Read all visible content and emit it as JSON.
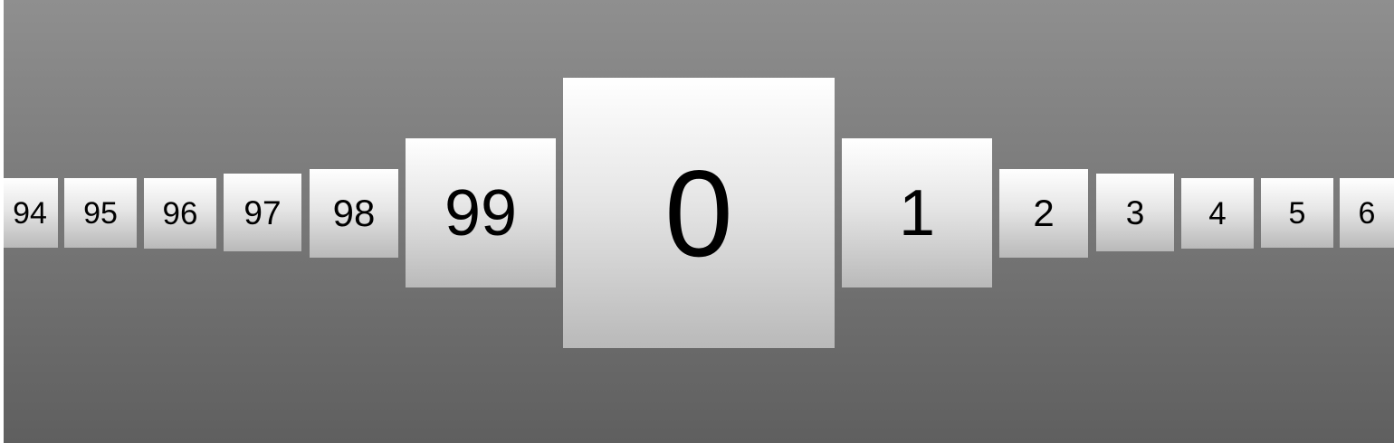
{
  "carousel": {
    "selected_index": 6,
    "items": [
      {
        "label": "94"
      },
      {
        "label": "95"
      },
      {
        "label": "96"
      },
      {
        "label": "97"
      },
      {
        "label": "98"
      },
      {
        "label": "99"
      },
      {
        "label": "0"
      },
      {
        "label": "1"
      },
      {
        "label": "2"
      },
      {
        "label": "3"
      },
      {
        "label": "4"
      },
      {
        "label": "5"
      },
      {
        "label": "6"
      }
    ]
  },
  "colors": {
    "background_top": "#8f8f8f",
    "background_bottom": "#5f5f5f",
    "card_top": "#ffffff",
    "card_bottom": "#b9b9b9",
    "text": "#000000"
  }
}
